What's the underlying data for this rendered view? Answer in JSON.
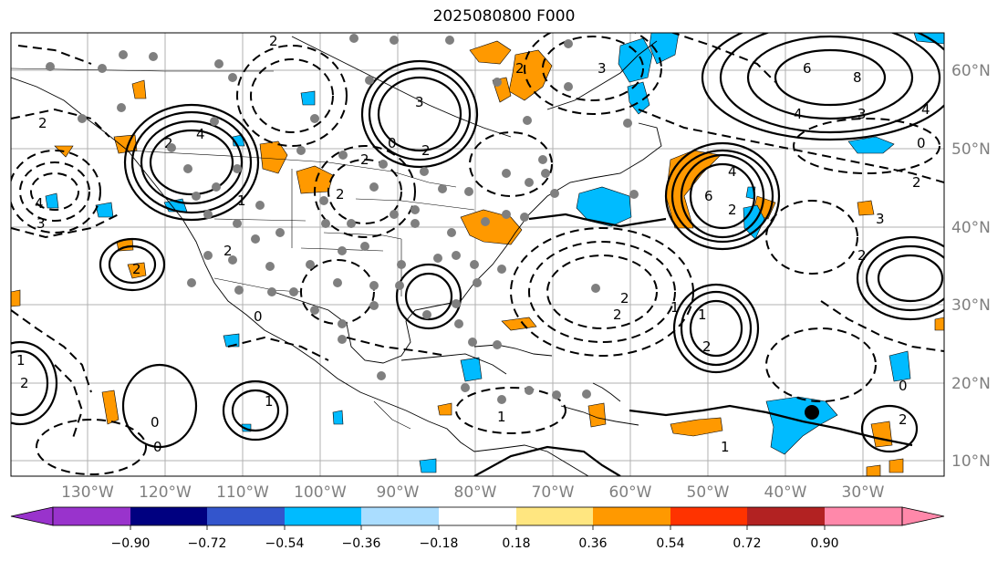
{
  "title": "2025080800 F000",
  "longitude_labels": [
    "130°W",
    "120°W",
    "110°W",
    "100°W",
    "90°W",
    "80°W",
    "70°W",
    "60°W",
    "50°W",
    "40°W",
    "30°W"
  ],
  "latitude_labels": [
    "60°N",
    "50°N",
    "40°N",
    "30°N",
    "20°N",
    "10°N"
  ],
  "colorbar": {
    "ticks": [
      "−0.90",
      "−0.72",
      "−0.54",
      "−0.36",
      "−0.18",
      "0.18",
      "0.36",
      "0.54",
      "0.72",
      "0.90"
    ],
    "colors": [
      "#9933cc",
      "#000080",
      "#3355cc",
      "#00bbff",
      "#aaddff",
      "#ffffff",
      "#ffe680",
      "#ff9900",
      "#ff3300",
      "#b22222",
      "#ff88aa"
    ]
  },
  "contour_labels": [
    "2",
    "3",
    "6",
    "8",
    "4",
    "2",
    "0",
    "4",
    "2",
    "6",
    "3",
    "2",
    "0",
    "4",
    "2",
    "3",
    "1",
    "2",
    "0",
    "2",
    "2",
    "2",
    "1",
    "4",
    "1",
    "2",
    "0",
    "2",
    "1",
    "2",
    "0",
    "3",
    "3",
    "2",
    "4",
    "2",
    "2",
    "2",
    "1",
    "1",
    "0",
    "2",
    "1"
  ],
  "marker": {
    "color": "#000000",
    "lon": "37°W",
    "lat": "16°N"
  }
}
